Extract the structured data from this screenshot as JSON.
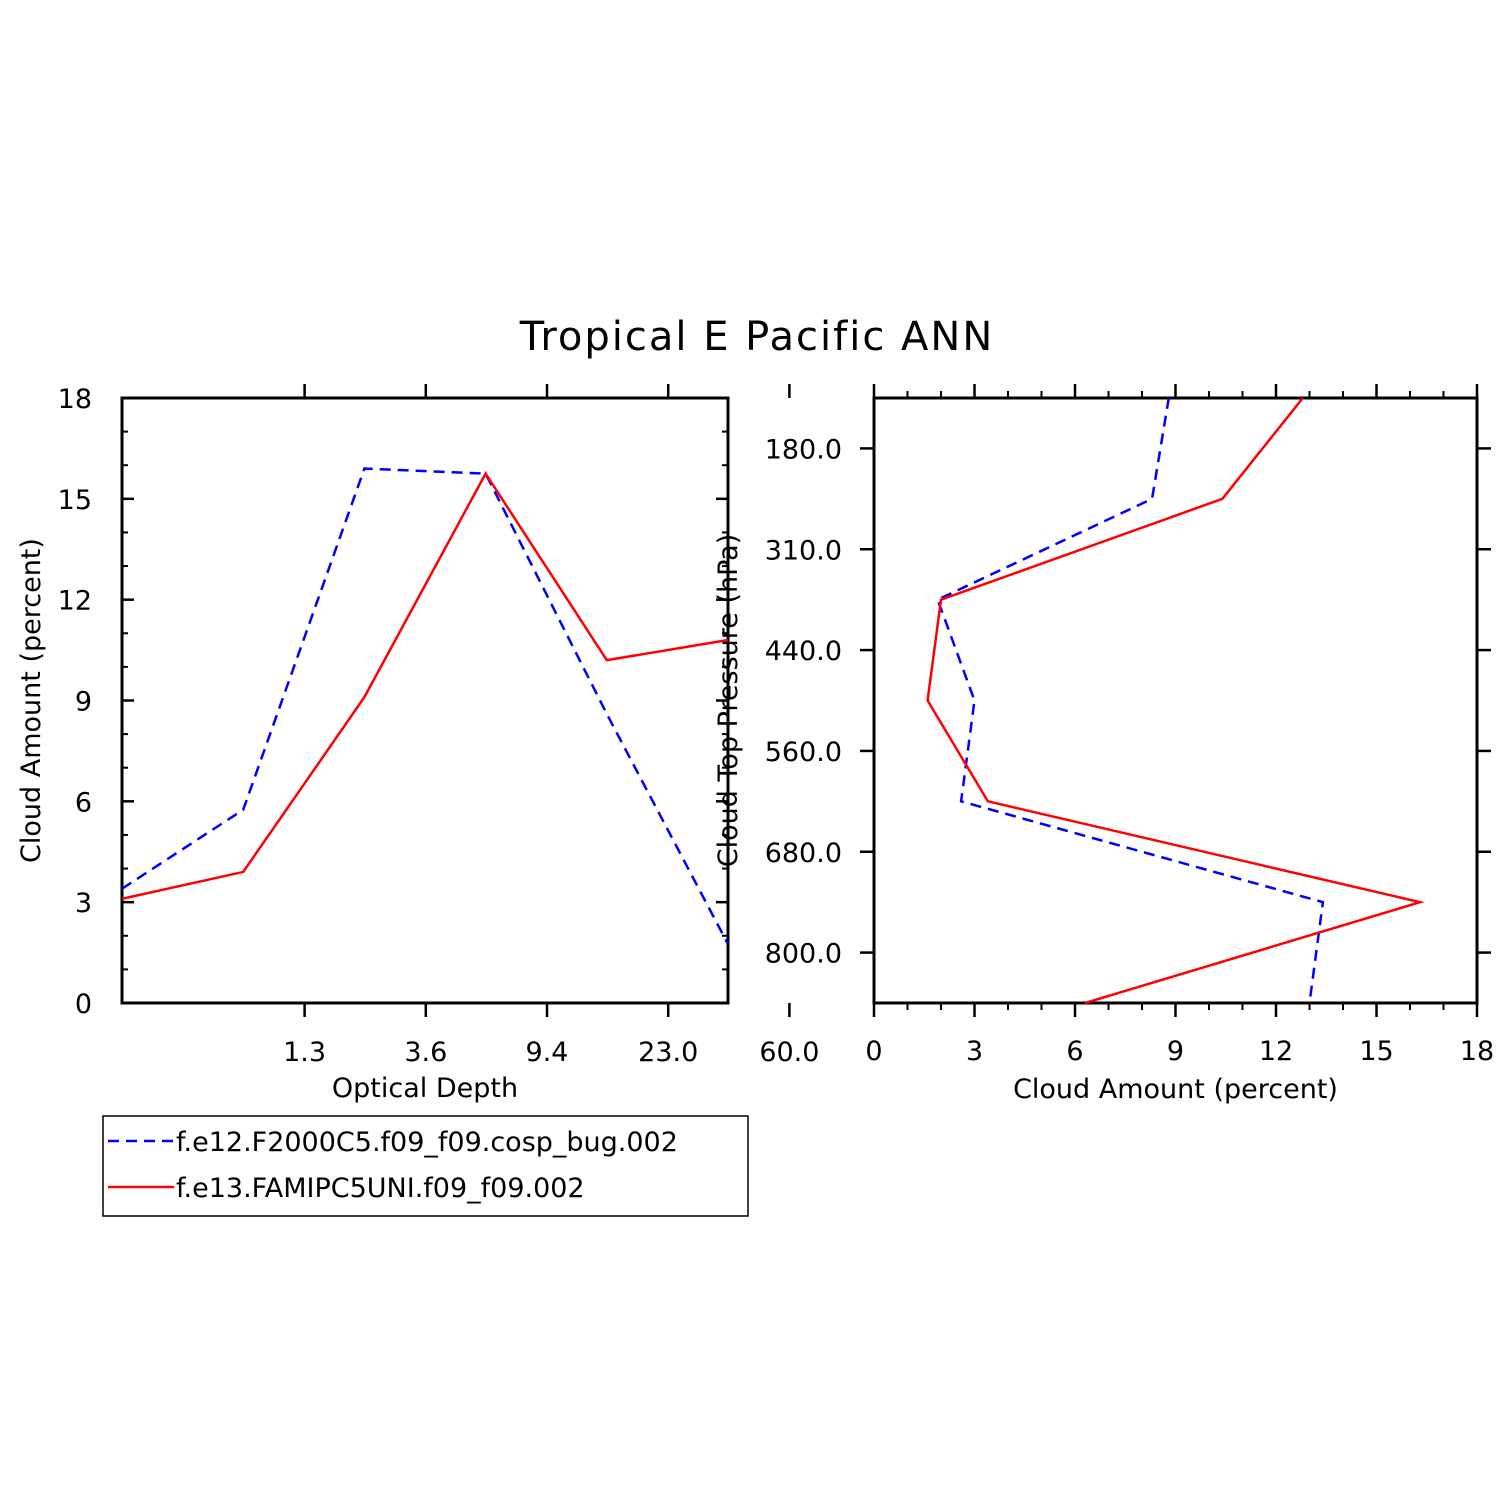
{
  "title": "Tropical E Pacific ANN",
  "colors": {
    "series_dashed": "#0000ff",
    "series_solid": "#ff0000",
    "axis": "#000000"
  },
  "legend": {
    "placement": "below-left",
    "entries": [
      {
        "label": "f.e12.F2000C5.f09_f09.cosp_bug.002",
        "style": "dashed"
      },
      {
        "label": "f.e13.FAMIPC5UNI.f09_f09.002",
        "style": "solid"
      }
    ]
  },
  "chart_data": [
    {
      "type": "line",
      "xlabel": "Optical Depth",
      "ylabel": "Cloud Amount (percent)",
      "x_tick_labels": [
        "1.3",
        "3.6",
        "9.4",
        "23.0",
        "60.0"
      ],
      "y_ticks": [
        0,
        3,
        6,
        9,
        12,
        15,
        18
      ],
      "ylim": [
        0,
        18
      ],
      "x_bin_index": [
        0,
        1,
        2,
        3,
        4,
        5
      ],
      "series": [
        {
          "name": "f.e12.F2000C5.f09_f09.cosp_bug.002",
          "style": "dashed",
          "values": [
            3.4,
            5.75,
            15.9,
            15.75,
            8.6,
            1.75
          ]
        },
        {
          "name": "f.e13.FAMIPC5UNI.f09_f09.002",
          "style": "solid",
          "values": [
            3.1,
            3.9,
            9.1,
            15.75,
            10.2,
            10.8
          ]
        }
      ]
    },
    {
      "type": "line",
      "xlabel": "Cloud Amount (percent)",
      "ylabel": "Cloud Top Pressure (hPa)",
      "x_ticks": [
        0,
        3,
        6,
        9,
        12,
        15,
        18
      ],
      "xlim": [
        0,
        18
      ],
      "y_tick_labels": [
        "180.0",
        "310.0",
        "440.0",
        "560.0",
        "680.0",
        "800.0"
      ],
      "y_bin_index": [
        0,
        1,
        2,
        3,
        4,
        5,
        6
      ],
      "series": [
        {
          "name": "f.e12.F2000C5.f09_f09.cosp_bug.002",
          "style": "dashed",
          "values": [
            8.8,
            8.3,
            1.9,
            3.0,
            2.6,
            13.4,
            13.0
          ]
        },
        {
          "name": "f.e13.FAMIPC5UNI.f09_f09.002",
          "style": "solid",
          "values": [
            12.8,
            10.4,
            2.0,
            1.6,
            3.4,
            16.3,
            6.3
          ]
        }
      ]
    }
  ]
}
